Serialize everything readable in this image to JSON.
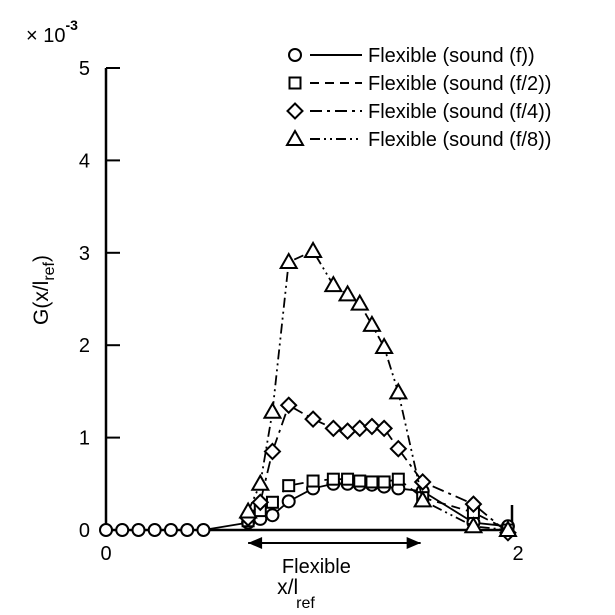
{
  "chart_data": {
    "type": "line",
    "title": "",
    "xlabel": "x/l",
    "xlabel_sub": "ref",
    "ylabel": "G(x/l",
    "ylabel_sub": "ref",
    "ylabel_close": ")",
    "y_multiplier": "× 10",
    "y_multiplier_exp": "-3",
    "xlim": [
      0,
      2
    ],
    "ylim": [
      0,
      5
    ],
    "x_ticks": [
      0,
      2
    ],
    "y_ticks": [
      0,
      1,
      2,
      3,
      4,
      5
    ],
    "grid": false,
    "legend_position": "top-right",
    "annotation": {
      "text": "Flexible",
      "x_range": [
        0.7,
        1.55
      ],
      "y": -0.22
    },
    "series": [
      {
        "name": "Flexible (sound (f))",
        "marker": "circle",
        "line_style": "solid",
        "x": [
          0,
          0.08,
          0.16,
          0.24,
          0.32,
          0.4,
          0.48,
          0.7,
          0.76,
          0.82,
          0.9,
          1.02,
          1.12,
          1.19,
          1.25,
          1.31,
          1.37,
          1.44,
          1.56,
          1.81,
          1.98
        ],
        "values": [
          0,
          0,
          0,
          0,
          0,
          0,
          0,
          0.08,
          0.12,
          0.16,
          0.31,
          0.45,
          0.5,
          0.5,
          0.49,
          0.49,
          0.47,
          0.45,
          0.42,
          0.08,
          0.04
        ]
      },
      {
        "name": "Flexible (sound (f/2))",
        "marker": "square",
        "line_style": "dashed",
        "x": [
          0.7,
          0.76,
          0.82,
          0.9,
          1.02,
          1.12,
          1.19,
          1.25,
          1.31,
          1.37,
          1.44,
          1.56,
          1.81,
          1.98
        ],
        "values": [
          0.1,
          0.21,
          0.3,
          0.48,
          0.53,
          0.55,
          0.55,
          0.53,
          0.52,
          0.52,
          0.55,
          0.35,
          0.19,
          0.0
        ]
      },
      {
        "name": "Flexible (sound (f/4))",
        "marker": "diamond",
        "line_style": "dashdot",
        "x": [
          0.7,
          0.76,
          0.82,
          0.9,
          1.02,
          1.12,
          1.19,
          1.25,
          1.31,
          1.37,
          1.44,
          1.56,
          1.81,
          1.98
        ],
        "values": [
          0.13,
          0.3,
          0.85,
          1.35,
          1.2,
          1.1,
          1.07,
          1.1,
          1.12,
          1.1,
          0.88,
          0.52,
          0.28,
          -0.03
        ]
      },
      {
        "name": "Flexible (sound (f/8))",
        "marker": "triangle",
        "line_style": "dashdotdot",
        "x": [
          0.7,
          0.76,
          0.82,
          0.9,
          1.02,
          1.12,
          1.19,
          1.25,
          1.31,
          1.37,
          1.44,
          1.56,
          1.81,
          1.98
        ],
        "values": [
          0.2,
          0.5,
          1.28,
          2.9,
          3.02,
          2.65,
          2.55,
          2.45,
          2.22,
          1.98,
          1.49,
          0.32,
          0.04,
          0.0
        ]
      }
    ]
  }
}
